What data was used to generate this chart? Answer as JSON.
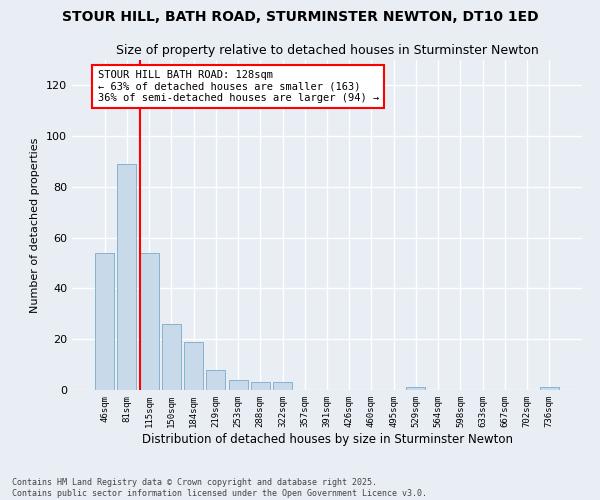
{
  "title": "STOUR HILL, BATH ROAD, STURMINSTER NEWTON, DT10 1ED",
  "subtitle": "Size of property relative to detached houses in Sturminster Newton",
  "xlabel": "Distribution of detached houses by size in Sturminster Newton",
  "ylabel": "Number of detached properties",
  "categories": [
    "46sqm",
    "81sqm",
    "115sqm",
    "150sqm",
    "184sqm",
    "219sqm",
    "253sqm",
    "288sqm",
    "322sqm",
    "357sqm",
    "391sqm",
    "426sqm",
    "460sqm",
    "495sqm",
    "529sqm",
    "564sqm",
    "598sqm",
    "633sqm",
    "667sqm",
    "702sqm",
    "736sqm"
  ],
  "values": [
    54,
    89,
    54,
    26,
    19,
    8,
    4,
    3,
    3,
    0,
    0,
    0,
    0,
    0,
    1,
    0,
    0,
    0,
    0,
    0,
    1
  ],
  "bar_color": "#c8daea",
  "bar_edge_color": "#7aaac8",
  "redline_index": 2,
  "annotation_title": "STOUR HILL BATH ROAD: 128sqm",
  "annotation_line1": "← 63% of detached houses are smaller (163)",
  "annotation_line2": "36% of semi-detached houses are larger (94) →",
  "ylim": [
    0,
    130
  ],
  "yticks": [
    0,
    20,
    40,
    60,
    80,
    100,
    120
  ],
  "footer1": "Contains HM Land Registry data © Crown copyright and database right 2025.",
  "footer2": "Contains public sector information licensed under the Open Government Licence v3.0.",
  "bg_color": "#e8eef4",
  "grid_color": "#ffffff",
  "title_fontsize": 10,
  "subtitle_fontsize": 9,
  "bar_width": 0.85
}
